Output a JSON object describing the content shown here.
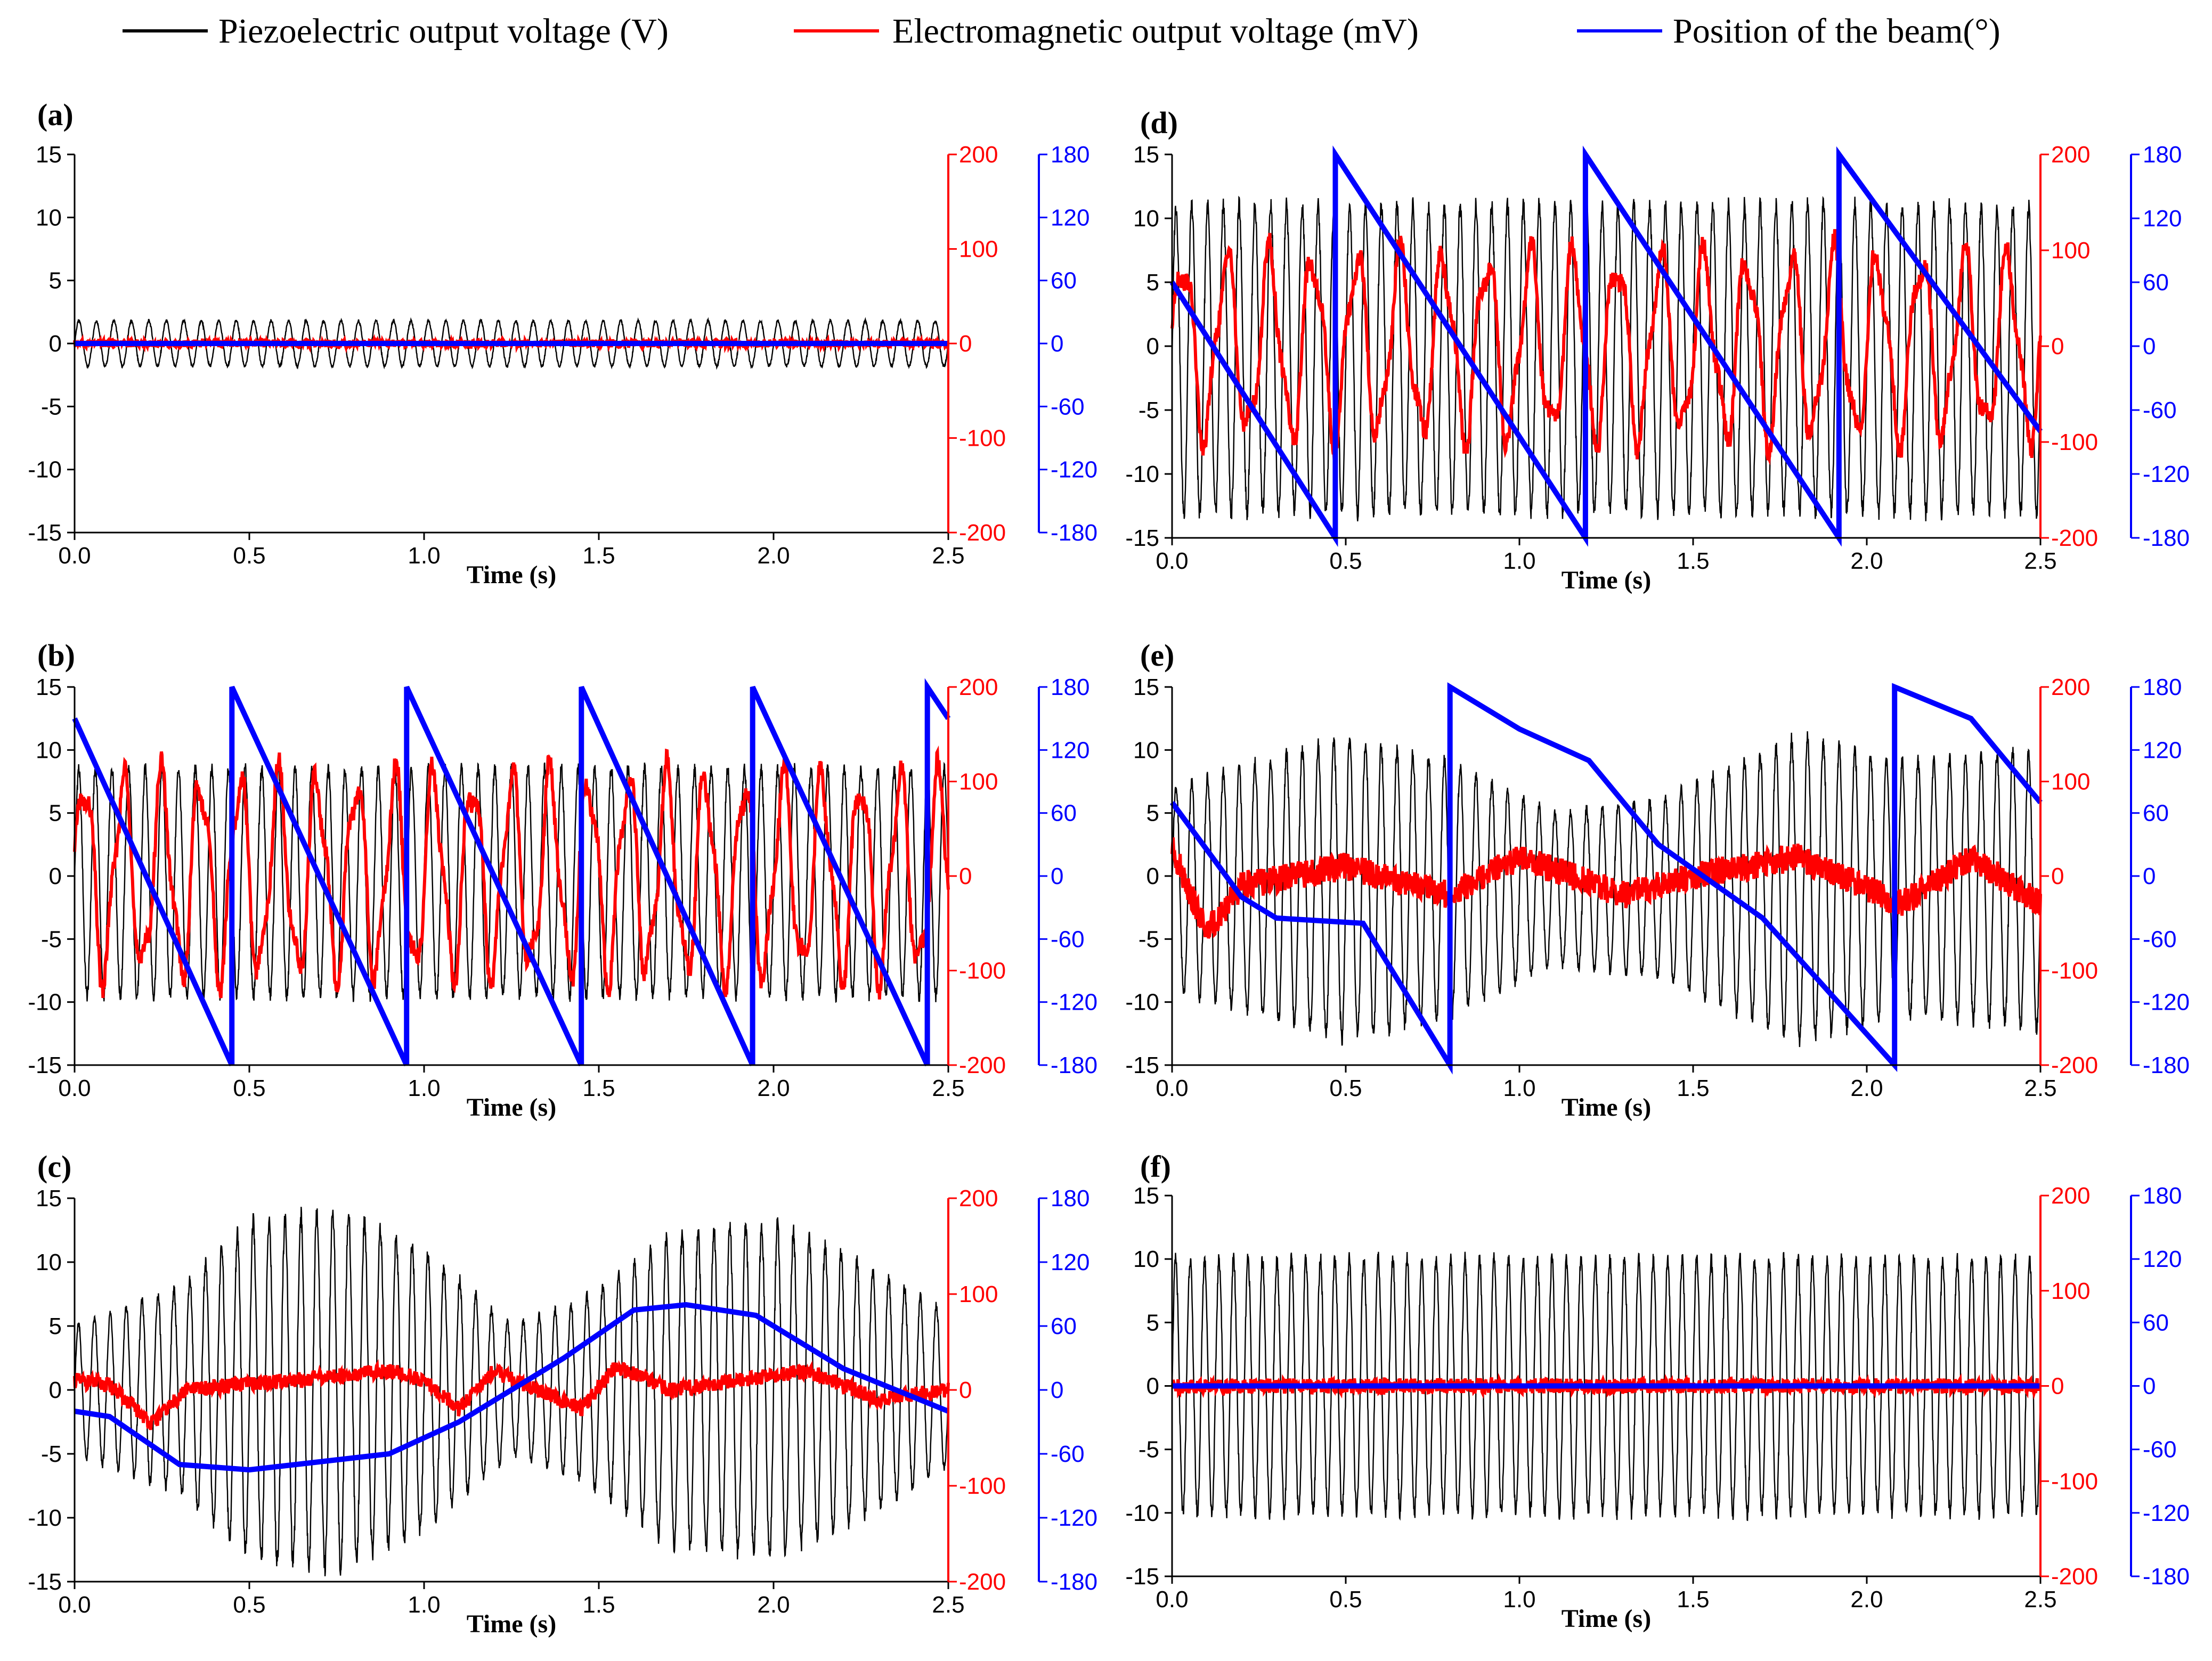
{
  "colors": {
    "piezo": "#000000",
    "em": "#ff0000",
    "beam": "#0000ff"
  },
  "legend": [
    {
      "label": "Piezoelectric output voltage (V)",
      "series": "piezo"
    },
    {
      "label": "Electromagnetic  output voltage (mV)",
      "series": "em"
    },
    {
      "label": "Position of the beam(°)",
      "series": "beam"
    }
  ],
  "chart_data": [
    {
      "panel": "(a)",
      "type": "line",
      "xlabel": "Time (s)",
      "xlim": [
        0,
        2.5
      ],
      "xticks": [
        "0.0",
        "0.5",
        "1.0",
        "1.5",
        "2.0",
        "2.5"
      ],
      "y_left": {
        "lim": [
          -15,
          15
        ],
        "ticks": [
          "-15",
          "-10",
          "-5",
          "0",
          "5",
          "10",
          "15"
        ]
      },
      "y_right_em": {
        "lim": [
          -200,
          200
        ],
        "ticks": [
          "-200",
          "-100",
          "0",
          "100",
          "200"
        ]
      },
      "y_right_beam": {
        "lim": [
          -180,
          180
        ],
        "ticks": [
          "-180",
          "-120",
          "-60",
          "0",
          "60",
          "120",
          "180"
        ]
      },
      "piezo": {
        "kind": "sine",
        "freq": 20,
        "amp": [
          [
            0,
            1.8
          ],
          [
            2.5,
            1.8
          ]
        ],
        "offset": 0
      },
      "em": {
        "kind": "noise",
        "level": [
          [
            0,
            0
          ],
          [
            2.5,
            0
          ]
        ],
        "noise": 4
      },
      "beam": {
        "kind": "points",
        "x": [
          0,
          2.5
        ],
        "y": [
          0,
          0
        ]
      }
    },
    {
      "panel": "(b)",
      "type": "line",
      "xlabel": "Time (s)",
      "xlim": [
        0,
        2.5
      ],
      "xticks": [
        "0.0",
        "0.5",
        "1.0",
        "1.5",
        "2.0",
        "2.5"
      ],
      "y_left": {
        "lim": [
          -15,
          15
        ],
        "ticks": [
          "-15",
          "-10",
          "-5",
          "0",
          "5",
          "10",
          "15"
        ]
      },
      "y_right_em": {
        "lim": [
          -200,
          200
        ],
        "ticks": [
          "-200",
          "-100",
          "0",
          "100",
          "200"
        ]
      },
      "y_right_beam": {
        "lim": [
          -180,
          180
        ],
        "ticks": [
          "-180",
          "-120",
          "-60",
          "0",
          "60",
          "120",
          "180"
        ]
      },
      "piezo": {
        "kind": "sine",
        "freq": 21,
        "amp": [
          [
            0,
            9
          ],
          [
            2.5,
            9
          ]
        ],
        "offset": -0.5
      },
      "em": {
        "kind": "sine",
        "freq": 9,
        "amp": [
          [
            0,
            100
          ],
          [
            2.5,
            100
          ]
        ],
        "offset": 0
      },
      "beam": {
        "kind": "points",
        "x": [
          0,
          0.45,
          0.4501,
          0.95,
          0.9501,
          1.45,
          1.4501,
          1.94,
          1.9401,
          2.44,
          2.4401,
          2.5
        ],
        "y": [
          150,
          -180,
          180,
          -180,
          180,
          -180,
          180,
          -180,
          180,
          -180,
          180,
          150
        ]
      }
    },
    {
      "panel": "(c)",
      "type": "line",
      "xlabel": "Time (s)",
      "xlim": [
        0,
        2.5
      ],
      "xticks": [
        "0.0",
        "0.5",
        "1.0",
        "1.5",
        "2.0",
        "2.5"
      ],
      "y_left": {
        "lim": [
          -15,
          15
        ],
        "ticks": [
          "-15",
          "-10",
          "-5",
          "0",
          "5",
          "10",
          "15"
        ]
      },
      "y_right_em": {
        "lim": [
          -200,
          200
        ],
        "ticks": [
          "-200",
          "-100",
          "0",
          "100",
          "200"
        ]
      },
      "y_right_beam": {
        "lim": [
          -180,
          180
        ],
        "ticks": [
          "-180",
          "-120",
          "-60",
          "0",
          "60",
          "120",
          "180"
        ]
      },
      "piezo": {
        "kind": "sine",
        "freq": 22,
        "amp": [
          [
            0,
            5
          ],
          [
            0.3,
            8
          ],
          [
            0.5,
            13
          ],
          [
            0.75,
            14
          ],
          [
            1.0,
            11
          ],
          [
            1.25,
            5
          ],
          [
            1.45,
            7
          ],
          [
            1.7,
            12
          ],
          [
            2.0,
            13
          ],
          [
            2.25,
            10
          ],
          [
            2.5,
            6
          ]
        ],
        "offset": 0
      },
      "em": {
        "kind": "noise",
        "level": [
          [
            0,
            10
          ],
          [
            0.1,
            5
          ],
          [
            0.22,
            -35
          ],
          [
            0.32,
            0
          ],
          [
            0.9,
            20
          ],
          [
            1.0,
            10
          ],
          [
            1.1,
            -20
          ],
          [
            1.2,
            20
          ],
          [
            1.45,
            -20
          ],
          [
            1.55,
            25
          ],
          [
            1.7,
            0
          ],
          [
            2.1,
            20
          ],
          [
            2.3,
            -10
          ],
          [
            2.5,
            0
          ]
        ],
        "noise": 8
      },
      "beam": {
        "kind": "points",
        "x": [
          0,
          0.1,
          0.3,
          0.5,
          0.9,
          1.1,
          1.4,
          1.6,
          1.75,
          1.95,
          2.2,
          2.5
        ],
        "y": [
          -20,
          -25,
          -70,
          -75,
          -60,
          -30,
          30,
          75,
          80,
          70,
          20,
          -20
        ]
      }
    },
    {
      "panel": "(d)",
      "type": "line",
      "xlabel": "Time (s)",
      "xlim": [
        0,
        2.5
      ],
      "xticks": [
        "0.0",
        "0.5",
        "1.0",
        "1.5",
        "2.0",
        "2.5"
      ],
      "y_left": {
        "lim": [
          -15,
          15
        ],
        "ticks": [
          "-15",
          "-10",
          "-5",
          "0",
          "5",
          "10",
          "15"
        ]
      },
      "y_right_em": {
        "lim": [
          -200,
          200
        ],
        "ticks": [
          "-200",
          "-100",
          "0",
          "100",
          "200"
        ]
      },
      "y_right_beam": {
        "lim": [
          -180,
          180
        ],
        "ticks": [
          "-180",
          "-120",
          "-60",
          "0",
          "60",
          "120",
          "180"
        ]
      },
      "piezo": {
        "kind": "sine",
        "freq": 22,
        "amp": [
          [
            0,
            12
          ],
          [
            2.5,
            12
          ]
        ],
        "offset": -1
      },
      "em": {
        "kind": "sine",
        "freq": 8,
        "amp": [
          [
            0,
            90
          ],
          [
            2.5,
            90
          ]
        ],
        "offset": 0
      },
      "beam": {
        "kind": "points",
        "x": [
          0,
          0.47,
          0.4701,
          1.19,
          1.1901,
          1.92,
          1.9201,
          2.5
        ],
        "y": [
          60,
          -180,
          180,
          -180,
          180,
          -180,
          180,
          -80
        ]
      }
    },
    {
      "panel": "(e)",
      "type": "line",
      "xlabel": "Time (s)",
      "xlim": [
        0,
        2.5
      ],
      "xticks": [
        "0.0",
        "0.5",
        "1.0",
        "1.5",
        "2.0",
        "2.5"
      ],
      "y_left": {
        "lim": [
          -15,
          15
        ],
        "ticks": [
          "-15",
          "-10",
          "-5",
          "0",
          "5",
          "10",
          "15"
        ]
      },
      "y_right_em": {
        "lim": [
          -200,
          200
        ],
        "ticks": [
          "-200",
          "-100",
          "0",
          "100",
          "200"
        ]
      },
      "y_right_beam": {
        "lim": [
          -180,
          180
        ],
        "ticks": [
          "-180",
          "-120",
          "-60",
          "0",
          "60",
          "120",
          "180"
        ]
      },
      "piezo": {
        "kind": "sine",
        "freq": 22,
        "amp": [
          [
            0,
            8
          ],
          [
            0.5,
            12
          ],
          [
            0.8,
            10
          ],
          [
            1.1,
            6
          ],
          [
            1.4,
            7
          ],
          [
            1.8,
            12
          ],
          [
            2.1,
            10
          ],
          [
            2.5,
            11
          ]
        ],
        "offset": -1
      },
      "em": {
        "kind": "noise",
        "level": [
          [
            0,
            30
          ],
          [
            0.1,
            -60
          ],
          [
            0.2,
            -10
          ],
          [
            0.5,
            10
          ],
          [
            0.8,
            -20
          ],
          [
            1.0,
            20
          ],
          [
            1.3,
            -20
          ],
          [
            1.5,
            0
          ],
          [
            1.8,
            20
          ],
          [
            2.1,
            -30
          ],
          [
            2.3,
            20
          ],
          [
            2.5,
            -30
          ]
        ],
        "noise": 15
      },
      "beam": {
        "kind": "points",
        "x": [
          0,
          0.2,
          0.3,
          0.55,
          0.8,
          0.8001,
          1.0,
          1.2,
          1.4,
          1.7,
          2.08,
          2.0801,
          2.3,
          2.5
        ],
        "y": [
          70,
          -20,
          -40,
          -45,
          -180,
          180,
          140,
          110,
          30,
          -40,
          -180,
          180,
          150,
          70
        ]
      }
    },
    {
      "panel": "(f)",
      "type": "line",
      "xlabel": "Time (s)",
      "xlim": [
        0,
        2.5
      ],
      "xticks": [
        "0.0",
        "0.5",
        "1.0",
        "1.5",
        "2.0",
        "2.5"
      ],
      "y_left": {
        "lim": [
          -15,
          15
        ],
        "ticks": [
          "-15",
          "-10",
          "-5",
          "0",
          "5",
          "10",
          "15"
        ]
      },
      "y_right_em": {
        "lim": [
          -200,
          200
        ],
        "ticks": [
          "-200",
          "-100",
          "0",
          "100",
          "200"
        ]
      },
      "y_right_beam": {
        "lim": [
          -180,
          180
        ],
        "ticks": [
          "-180",
          "-120",
          "-60",
          "0",
          "60",
          "120",
          "180"
        ]
      },
      "piezo": {
        "kind": "sine",
        "freq": 24,
        "amp": [
          [
            0,
            10
          ],
          [
            2.5,
            10
          ]
        ],
        "offset": 0
      },
      "em": {
        "kind": "noise",
        "level": [
          [
            0,
            0
          ],
          [
            2.5,
            0
          ]
        ],
        "noise": 8
      },
      "beam": {
        "kind": "points",
        "x": [
          0,
          2.5
        ],
        "y": [
          0,
          0
        ]
      }
    }
  ]
}
